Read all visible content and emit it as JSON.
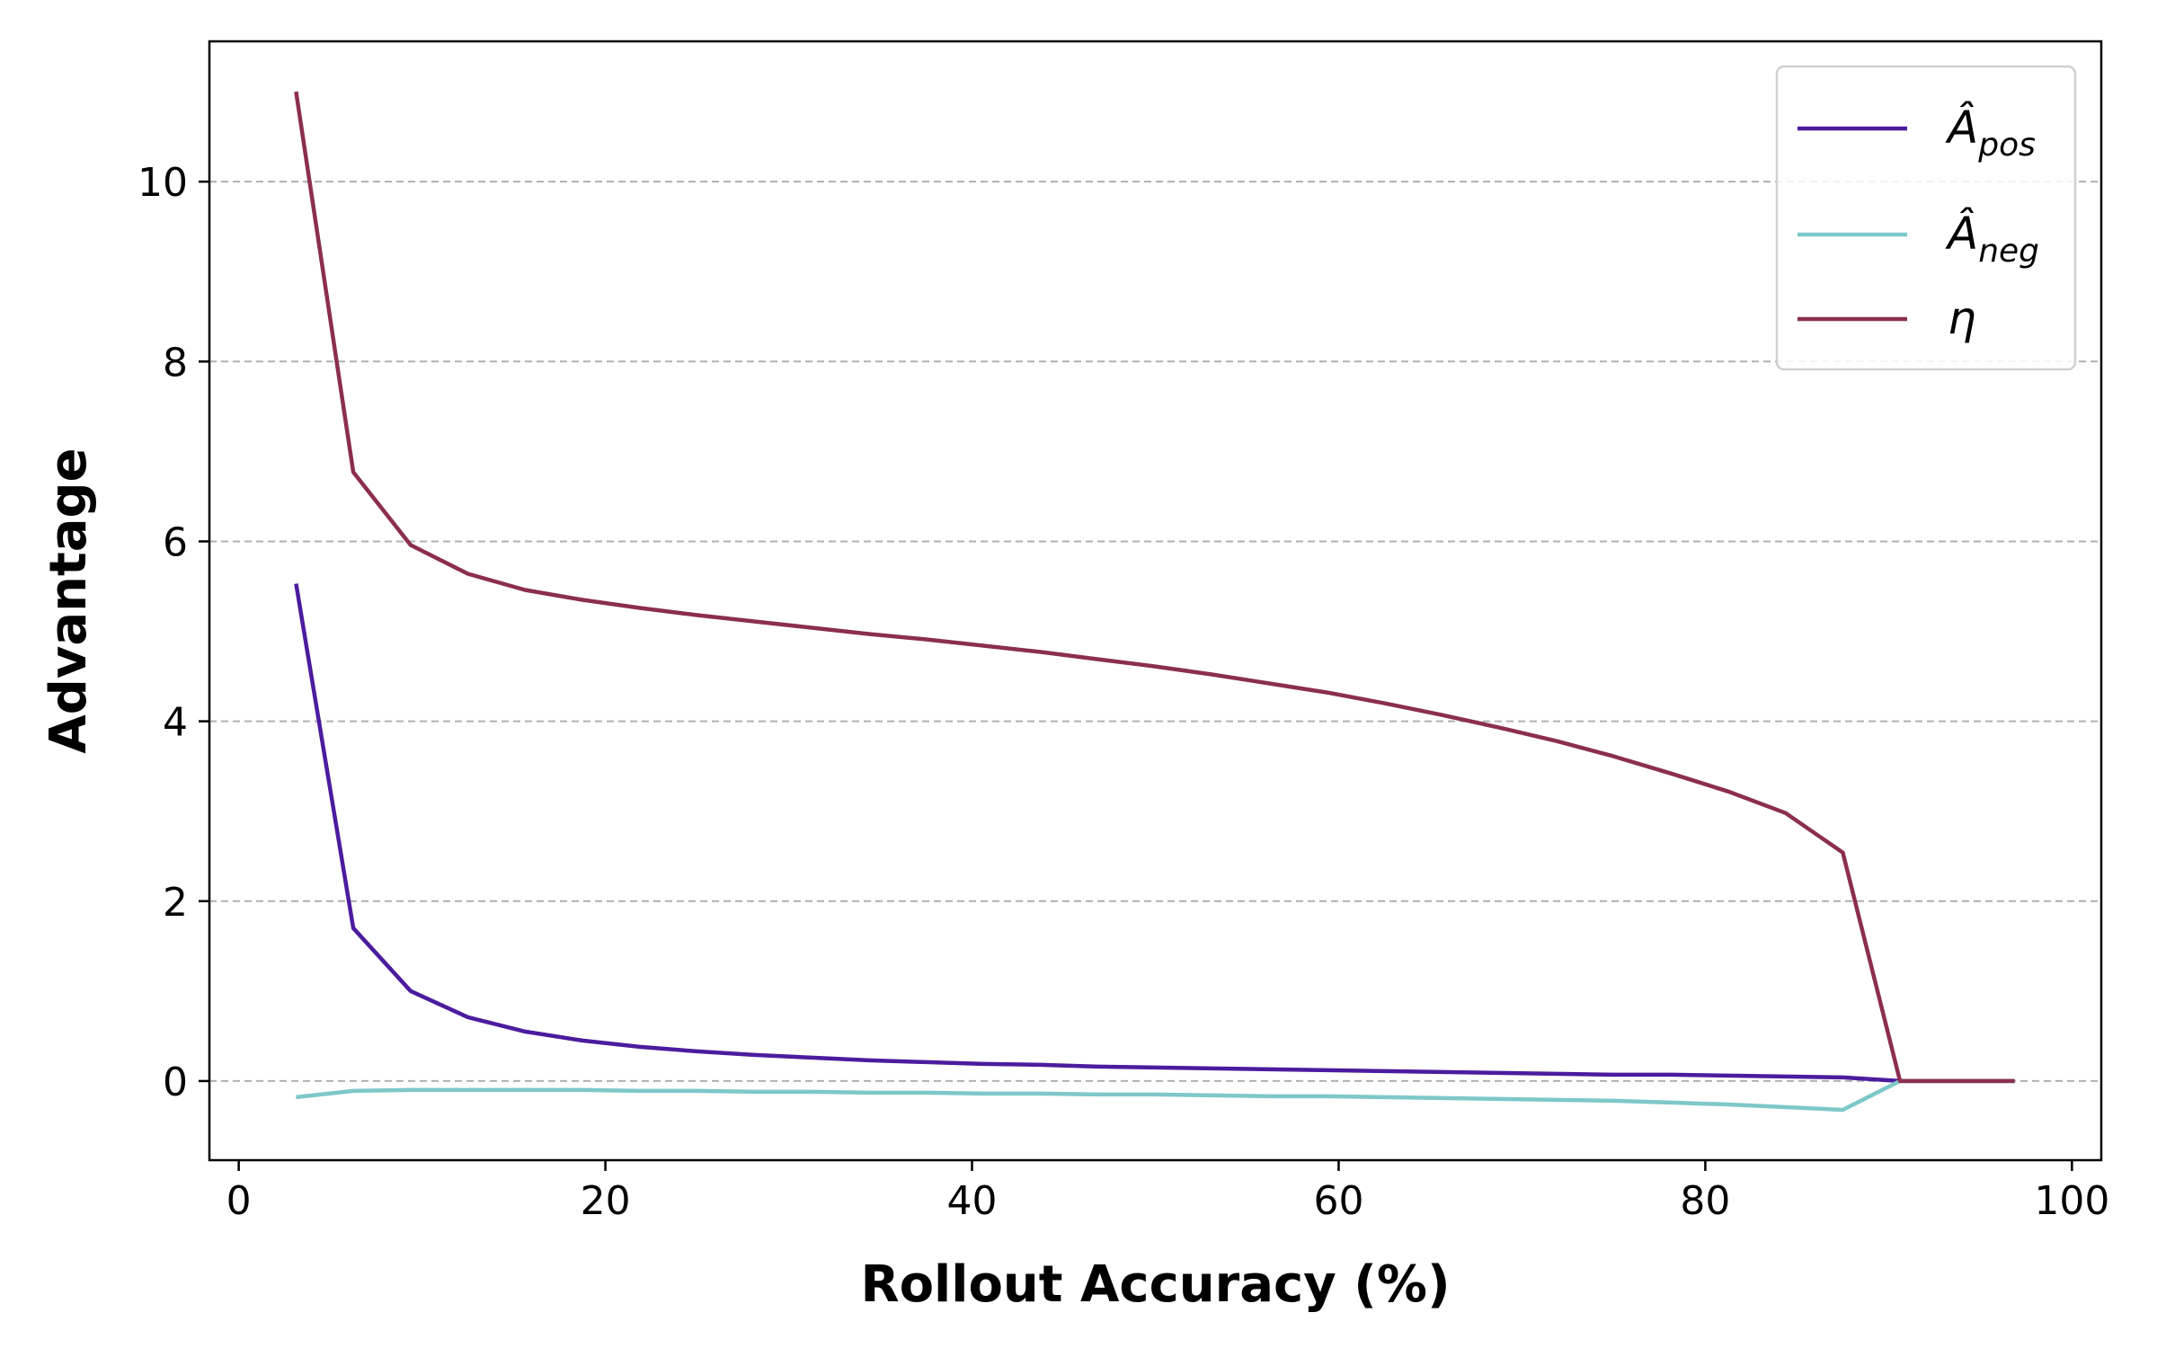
{
  "chart_data": {
    "type": "line",
    "title": "",
    "xlabel": "Rollout Accuracy (%)",
    "ylabel": "Advantage",
    "xlim": [
      -1.6,
      101.6
    ],
    "ylim": [
      -0.88,
      11.56
    ],
    "x_ticks": [
      0,
      20,
      40,
      60,
      80,
      100
    ],
    "y_ticks": [
      0,
      2,
      4,
      6,
      8,
      10
    ],
    "grid": {
      "axis": "y",
      "style": "dashed",
      "enabled": true
    },
    "legend": {
      "placement": "top-right"
    },
    "x": [
      3.125,
      6.25,
      9.375,
      12.5,
      15.625,
      18.75,
      21.875,
      25.0,
      28.125,
      31.25,
      34.375,
      37.5,
      40.625,
      43.75,
      46.875,
      50.0,
      53.125,
      56.25,
      59.375,
      62.5,
      65.625,
      68.75,
      71.875,
      75.0,
      78.125,
      81.25,
      84.375,
      87.5,
      90.625,
      93.75,
      96.875
    ],
    "series": [
      {
        "name": "Â_pos",
        "name_base": "Â",
        "name_sub": "pos",
        "color": "#4b1c9e",
        "values": [
          5.53,
          1.7,
          1.0,
          0.71,
          0.55,
          0.45,
          0.38,
          0.33,
          0.29,
          0.26,
          0.23,
          0.21,
          0.19,
          0.18,
          0.16,
          0.15,
          0.14,
          0.13,
          0.12,
          0.11,
          0.1,
          0.09,
          0.08,
          0.07,
          0.07,
          0.06,
          0.05,
          0.04,
          0.0,
          0.0,
          0.0
        ]
      },
      {
        "name": "Â_neg",
        "name_base": "Â",
        "name_sub": "neg",
        "color": "#7ec8c9",
        "values": [
          -0.18,
          -0.11,
          -0.1,
          -0.1,
          -0.1,
          -0.1,
          -0.11,
          -0.11,
          -0.12,
          -0.12,
          -0.13,
          -0.13,
          -0.14,
          -0.14,
          -0.15,
          -0.15,
          -0.16,
          -0.17,
          -0.17,
          -0.18,
          -0.19,
          -0.2,
          -0.21,
          -0.22,
          -0.24,
          -0.26,
          -0.29,
          -0.32,
          0.0,
          0.0,
          0.0
        ]
      },
      {
        "name": "η",
        "name_base": "η",
        "name_sub": "",
        "color": "#8b2e50",
        "values": [
          11.0,
          6.77,
          5.96,
          5.64,
          5.46,
          5.35,
          5.26,
          5.18,
          5.11,
          5.04,
          4.97,
          4.91,
          4.84,
          4.77,
          4.69,
          4.61,
          4.52,
          4.42,
          4.32,
          4.2,
          4.07,
          3.93,
          3.78,
          3.61,
          3.42,
          3.22,
          2.98,
          2.54,
          0.0,
          0.0,
          0.0
        ]
      }
    ]
  }
}
